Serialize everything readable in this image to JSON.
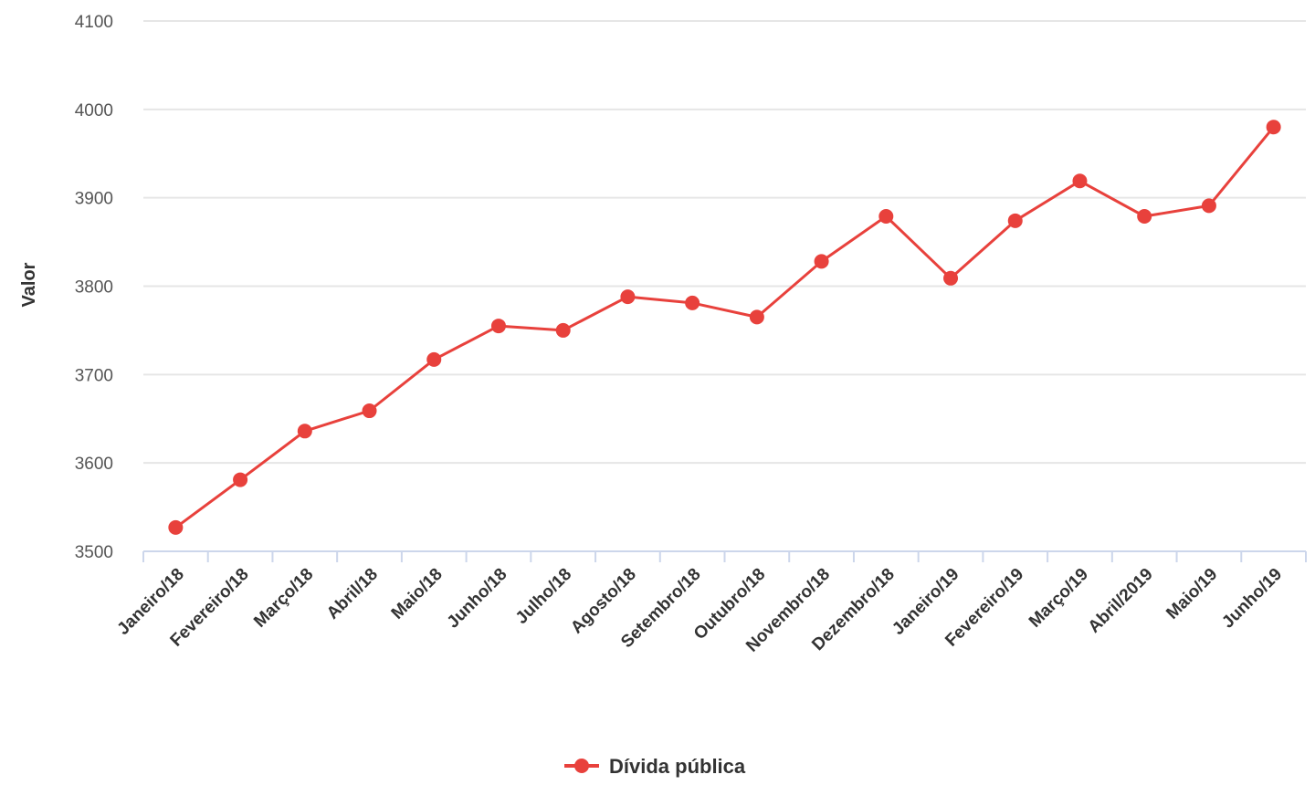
{
  "chart_data": {
    "type": "line",
    "title": "",
    "xlabel": "",
    "ylabel": "Valor",
    "ylim": [
      3500,
      4100
    ],
    "yticks": [
      "3500",
      "3600",
      "3700",
      "3800",
      "3900",
      "4000",
      "4100"
    ],
    "grid": true,
    "legend_position": "bottom-center",
    "categories": [
      "Janeiro/18",
      "Fevereiro/18",
      "Março/18",
      "Abril/18",
      "Maio/18",
      "Junho/18",
      "Julho/18",
      "Agosto/18",
      "Setembro/18",
      "Outubro/18",
      "Novembro/18",
      "Dezembro/18",
      "Janeiro/19",
      "Fevereiro/19",
      "Março/19",
      "Abril/2019",
      "Maio/19",
      "Junho/19"
    ],
    "series": [
      {
        "name": "Dívida pública",
        "color": "#e8413c",
        "values": [
          3527,
          3581,
          3636,
          3659,
          3717,
          3755,
          3750,
          3788,
          3781,
          3765,
          3828,
          3879,
          3809,
          3874,
          3919,
          3879,
          3891,
          3980
        ]
      }
    ]
  }
}
